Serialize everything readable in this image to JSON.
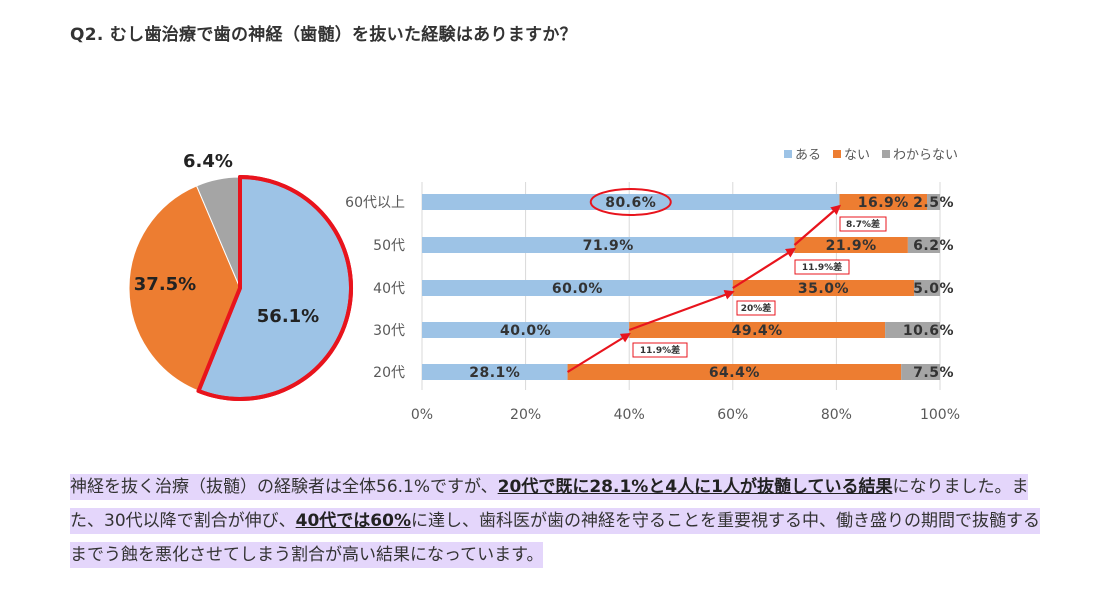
{
  "question": "Q2. むし歯治療で歯の神経（歯髄）を抜いた経験はありますか？",
  "colors": {
    "aru": "#9dc3e6",
    "nai": "#ed7d31",
    "wakaranai": "#a5a5a5",
    "highlight_red": "#e8141d",
    "grid": "#d9d9d9",
    "text_highlight_bg": "#e4d6fb"
  },
  "chart_data": [
    {
      "type": "pie",
      "title": "",
      "labels": [
        "ある",
        "ない",
        "わからない"
      ],
      "values": [
        56.1,
        37.5,
        6.4
      ],
      "value_labels": [
        "56.1%",
        "37.5%",
        "6.4%"
      ],
      "highlighted_slice": "ある"
    },
    {
      "type": "bar",
      "orientation": "horizontal",
      "stacked": true,
      "title": "",
      "categories": [
        "60代以上",
        "50代",
        "40代",
        "30代",
        "20代"
      ],
      "series": [
        {
          "name": "ある",
          "values": [
            80.6,
            71.9,
            60.0,
            40.0,
            28.1
          ],
          "labels": [
            "80.6%",
            "71.9%",
            "60.0%",
            "40.0%",
            "28.1%"
          ]
        },
        {
          "name": "ない",
          "values": [
            16.9,
            21.9,
            35.0,
            49.4,
            64.4
          ],
          "labels": [
            "16.9%",
            "21.9%",
            "35.0%",
            "49.4%",
            "64.4%"
          ]
        },
        {
          "name": "わからない",
          "values": [
            2.5,
            6.2,
            5.0,
            10.6,
            7.5
          ],
          "labels": [
            "2.5%",
            "6.2%",
            "5.0%",
            "10.6%",
            "7.5%"
          ]
        }
      ],
      "xlim": [
        0,
        100
      ],
      "xticks": [
        "0%",
        "20%",
        "40%",
        "60%",
        "80%",
        "100%"
      ],
      "legend_position": "top-right",
      "grid": true,
      "circled_label": "80.6%",
      "annotations": [
        "11.9%差",
        "20%差",
        "11.9%差",
        "8.7%差"
      ]
    }
  ],
  "paragraph": {
    "seg1": "神経を抜く治療（抜髄）の経験者は全体56.1%ですが、",
    "seg2_bold": "20代で既に28.1%と4人に1人が抜髄している結果",
    "seg3": "になりました。また、30代以降で割合が伸び、",
    "seg4_bold": "40代では60%",
    "seg5": "に達し、歯科医が歯の神経を守ることを重要視する中、働き盛りの期間で抜髄するまでう蝕を悪化させてしまう割合が高い結果になっています。"
  }
}
